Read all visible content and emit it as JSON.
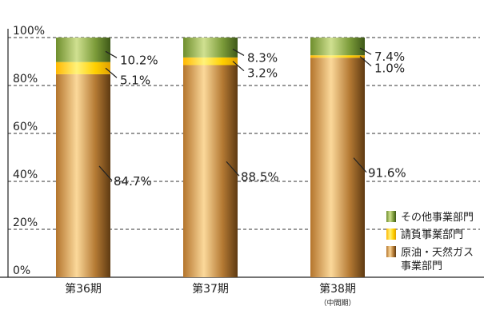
{
  "chart_data": {
    "type": "bar",
    "stacked": true,
    "title": "",
    "xlabel": "",
    "ylabel": "",
    "ylim": [
      0,
      100
    ],
    "yticks": [
      "0%",
      "20%",
      "40%",
      "60%",
      "80%",
      "100%"
    ],
    "grid": true,
    "legend_position": "bottom-right",
    "categories": [
      {
        "label": "第36期",
        "sublabel": ""
      },
      {
        "label": "第37期",
        "sublabel": ""
      },
      {
        "label": "第38期",
        "sublabel": "（中間期）"
      }
    ],
    "series": [
      {
        "name": "原油・天然ガス事業部門",
        "legend_lines": [
          "原油・天然ガス",
          "事業部門"
        ],
        "values": [
          84.7,
          88.5,
          91.6
        ],
        "labels": [
          "84.7%",
          "88.5%",
          "91.6%"
        ],
        "color": "#c8914a"
      },
      {
        "name": "請負事業部門",
        "legend_lines": [
          "請負事業部門"
        ],
        "values": [
          5.1,
          3.2,
          1.0
        ],
        "labels": [
          "5.1%",
          "3.2%",
          "1.0%"
        ],
        "color": "#ffd21a"
      },
      {
        "name": "その他事業部門",
        "legend_lines": [
          "その他事業部門"
        ],
        "values": [
          10.2,
          8.3,
          7.4
        ],
        "labels": [
          "10.2%",
          "8.3%",
          "7.4%"
        ],
        "color": "#7a9a3a"
      }
    ]
  }
}
